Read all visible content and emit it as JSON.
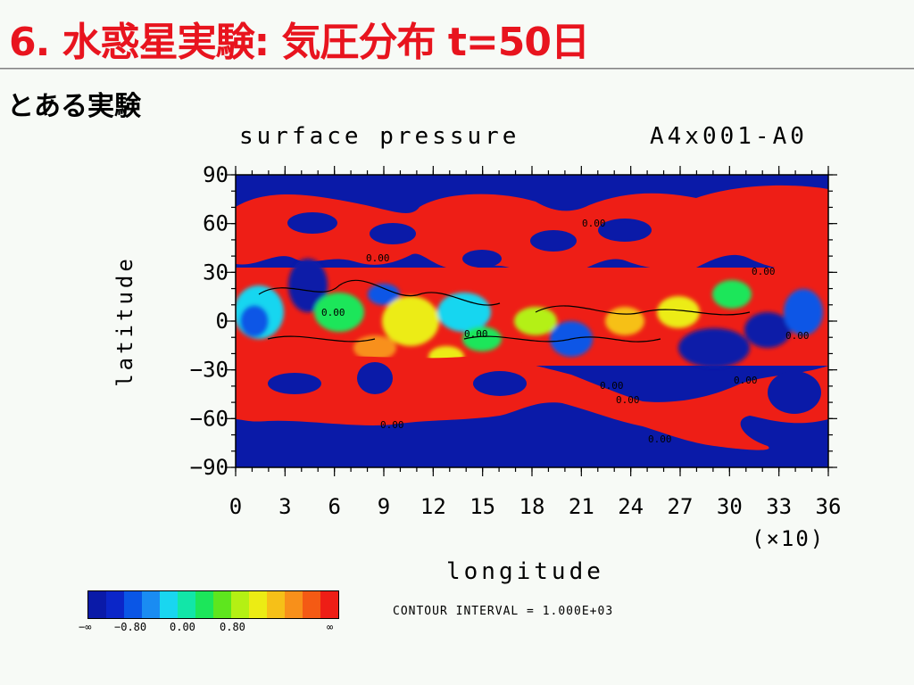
{
  "slide": {
    "title": "6. 水惑星実験: 気圧分布 t=50日",
    "subtitle": "とある実験"
  },
  "plot": {
    "title": "surface pressure",
    "run_id": "A4x001-A0",
    "xlabel": "longitude",
    "ylabel": "latitude",
    "x_unit": "(×10)",
    "contour_interval": "CONTOUR INTERVAL = 1.000E+03",
    "contour_labels": [
      "0.00",
      "0.00",
      "0.00",
      "0.00",
      "0.00",
      "0.00",
      "0.00",
      "0.00",
      "0.00",
      "0.00",
      "0.00"
    ]
  },
  "chart_data": {
    "type": "heatmap",
    "title": "surface pressure",
    "xlabel": "longitude",
    "ylabel": "latitude",
    "x_ticks": [
      "0",
      "3",
      "6",
      "9",
      "12",
      "15",
      "18",
      "21",
      "24",
      "27",
      "30",
      "33",
      "36"
    ],
    "y_ticks": [
      "90",
      "60",
      "30",
      "0",
      "−30",
      "−60",
      "−90"
    ],
    "xlim": [
      0,
      36
    ],
    "ylim": [
      -90,
      90
    ],
    "colorbar": {
      "labels": [
        "−∞",
        "−0.80",
        "0.00",
        "0.80",
        "∞"
      ],
      "colors": [
        "#0a1aa8",
        "#0b26c8",
        "#0a56e6",
        "#1a8cf2",
        "#19d6f0",
        "#12e6a8",
        "#1ce65a",
        "#5ee61e",
        "#b4f014",
        "#ecec14",
        "#f6c018",
        "#f8901a",
        "#f45a14",
        "#ee1e16"
      ]
    },
    "regions_note": "blue = low pressure, red = high pressure"
  }
}
